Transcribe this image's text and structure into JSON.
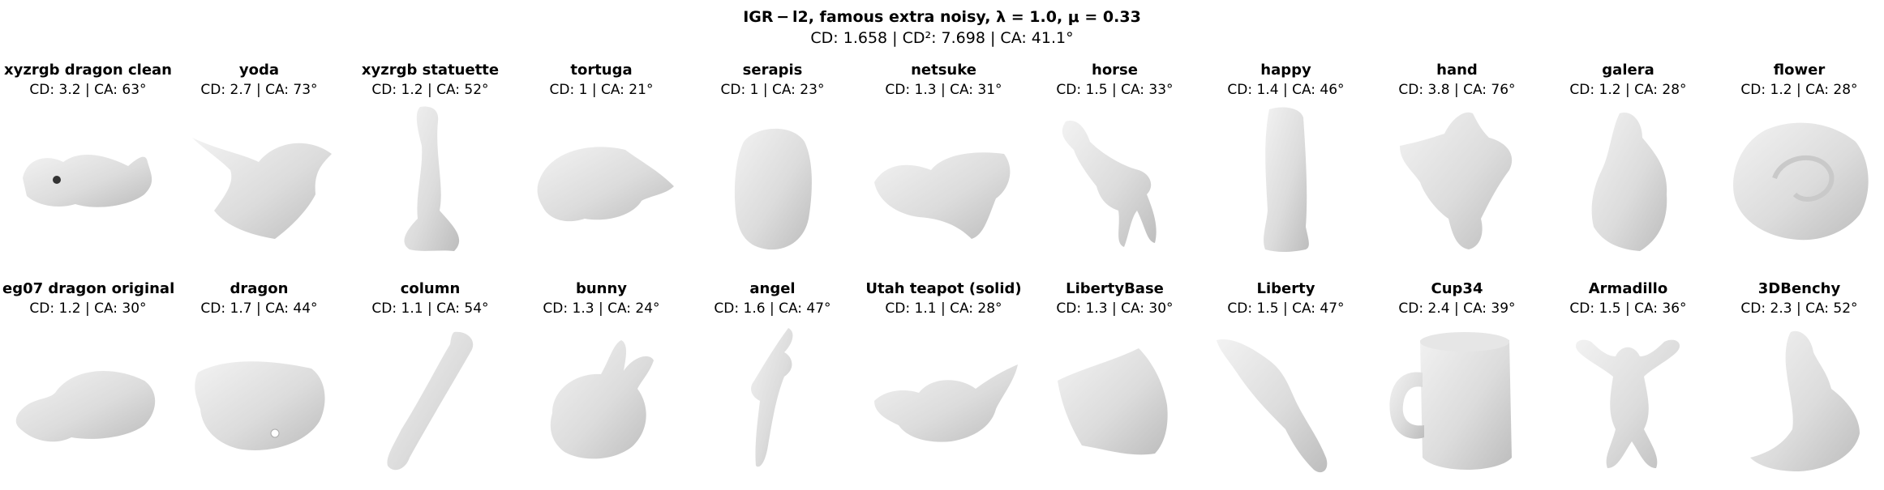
{
  "figure": {
    "title": "IGR − l2,  famous extra noisy,  λ = 1.0,  μ = 0.33",
    "subtitle": "CD: 1.658 | CD²: 7.698 | CA: 41.1°"
  },
  "rows": [
    {
      "cells": [
        {
          "name": "xyzrgb dragon clean",
          "metric": "CD: 3.2 | CA: 63°",
          "shape": "dragon-head-render"
        },
        {
          "name": "yoda",
          "metric": "CD: 2.7 | CA: 73°",
          "shape": "yoda-render"
        },
        {
          "name": "xyzrgb statuette",
          "metric": "CD: 1.2 | CA: 52°",
          "shape": "statuette-render"
        },
        {
          "name": "tortuga",
          "metric": "CD: 1 | CA: 21°",
          "shape": "tortuga-render"
        },
        {
          "name": "serapis",
          "metric": "CD: 1 | CA: 23°",
          "shape": "serapis-render"
        },
        {
          "name": "netsuke",
          "metric": "CD: 1.3 | CA: 31°",
          "shape": "netsuke-render"
        },
        {
          "name": "horse",
          "metric": "CD: 1.5 | CA: 33°",
          "shape": "horse-render"
        },
        {
          "name": "happy",
          "metric": "CD: 1.4 | CA: 46°",
          "shape": "happy-render"
        },
        {
          "name": "hand",
          "metric": "CD: 3.8 | CA: 76°",
          "shape": "hand-render"
        },
        {
          "name": "galera",
          "metric": "CD: 1.2 | CA: 28°",
          "shape": "galera-render"
        },
        {
          "name": "flower",
          "metric": "CD: 1.2 | CA: 28°",
          "shape": "flower-render"
        }
      ]
    },
    {
      "cells": [
        {
          "name": "eg07 dragon original",
          "metric": "CD: 1.2 | CA: 30°",
          "shape": "dragon-original-render"
        },
        {
          "name": "dragon",
          "metric": "CD: 1.7 | CA: 44°",
          "shape": "dragon-render"
        },
        {
          "name": "column",
          "metric": "CD: 1.1 | CA: 54°",
          "shape": "column-render"
        },
        {
          "name": "bunny",
          "metric": "CD: 1.3 | CA: 24°",
          "shape": "bunny-render"
        },
        {
          "name": "angel",
          "metric": "CD: 1.6 | CA: 47°",
          "shape": "angel-render"
        },
        {
          "name": "Utah teapot (solid)",
          "metric": "CD: 1.1 | CA: 28°",
          "shape": "teapot-render"
        },
        {
          "name": "LibertyBase",
          "metric": "CD: 1.3 | CA: 30°",
          "shape": "liberty-base-render"
        },
        {
          "name": "Liberty",
          "metric": "CD: 1.5 | CA: 47°",
          "shape": "liberty-render"
        },
        {
          "name": "Cup34",
          "metric": "CD: 2.4 | CA: 39°",
          "shape": "cup-render"
        },
        {
          "name": "Armadillo",
          "metric": "CD: 1.5 | CA: 36°",
          "shape": "armadillo-render"
        },
        {
          "name": "3DBenchy",
          "metric": "CD: 2.3 | CA: 52°",
          "shape": "benchy-render"
        }
      ]
    }
  ]
}
